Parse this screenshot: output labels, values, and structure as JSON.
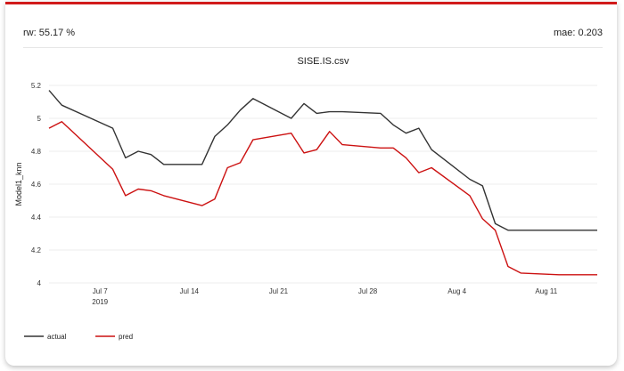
{
  "stats": {
    "rw": "rw: 55.17 %",
    "mae": "mae: 0.203"
  },
  "colors": {
    "accent": "#d11a1a",
    "actual": "#333333",
    "pred": "#cc1111"
  },
  "chart_data": {
    "type": "line",
    "title": "SISE.IS.csv",
    "xlabel": "",
    "ylabel": "Model1_knn",
    "xlim": [
      "2019-07-03",
      "2019-08-15"
    ],
    "ylim": [
      4,
      5.2
    ],
    "grid": true,
    "legend": "bottom-left",
    "yticks": [
      4,
      4.2,
      4.4,
      4.6,
      4.8,
      5,
      5.2
    ],
    "ytick_labels": [
      "4",
      "4.2",
      "4.4",
      "4.6",
      "4.8",
      "5",
      "5.2"
    ],
    "xticks": [
      "2019-07-07",
      "2019-07-14",
      "2019-07-21",
      "2019-07-28",
      "2019-08-04",
      "2019-08-11"
    ],
    "xtick_labels": [
      "Jul 7",
      "Jul 14",
      "Jul 21",
      "Jul 28",
      "Aug 4",
      "Aug 11"
    ],
    "xtick_sublabel": "2019",
    "x": [
      "2019-07-03",
      "2019-07-04",
      "2019-07-08",
      "2019-07-09",
      "2019-07-10",
      "2019-07-11",
      "2019-07-12",
      "2019-07-15",
      "2019-07-16",
      "2019-07-17",
      "2019-07-18",
      "2019-07-19",
      "2019-07-22",
      "2019-07-23",
      "2019-07-24",
      "2019-07-25",
      "2019-07-26",
      "2019-07-29",
      "2019-07-30",
      "2019-07-31",
      "2019-08-01",
      "2019-08-02",
      "2019-08-05",
      "2019-08-06",
      "2019-08-07",
      "2019-08-08",
      "2019-08-09",
      "2019-08-12",
      "2019-08-13",
      "2019-08-14",
      "2019-08-15"
    ],
    "series": [
      {
        "name": "actual",
        "color": "#333333",
        "values": [
          5.17,
          5.08,
          4.94,
          4.76,
          4.8,
          4.78,
          4.72,
          4.72,
          4.89,
          4.96,
          5.05,
          5.12,
          5.0,
          5.09,
          5.03,
          5.04,
          5.04,
          5.03,
          4.96,
          4.91,
          4.94,
          4.81,
          4.63,
          4.59,
          4.36,
          4.32,
          4.32,
          4.32,
          4.32,
          4.32,
          4.32
        ]
      },
      {
        "name": "pred",
        "color": "#cc1111",
        "values": [
          4.94,
          4.98,
          4.69,
          4.53,
          4.57,
          4.56,
          4.53,
          4.47,
          4.51,
          4.7,
          4.73,
          4.87,
          4.91,
          4.79,
          4.81,
          4.92,
          4.84,
          4.82,
          4.82,
          4.76,
          4.67,
          4.7,
          4.53,
          4.39,
          4.32,
          4.1,
          4.06,
          4.05,
          4.05,
          4.05,
          4.05
        ]
      }
    ]
  }
}
